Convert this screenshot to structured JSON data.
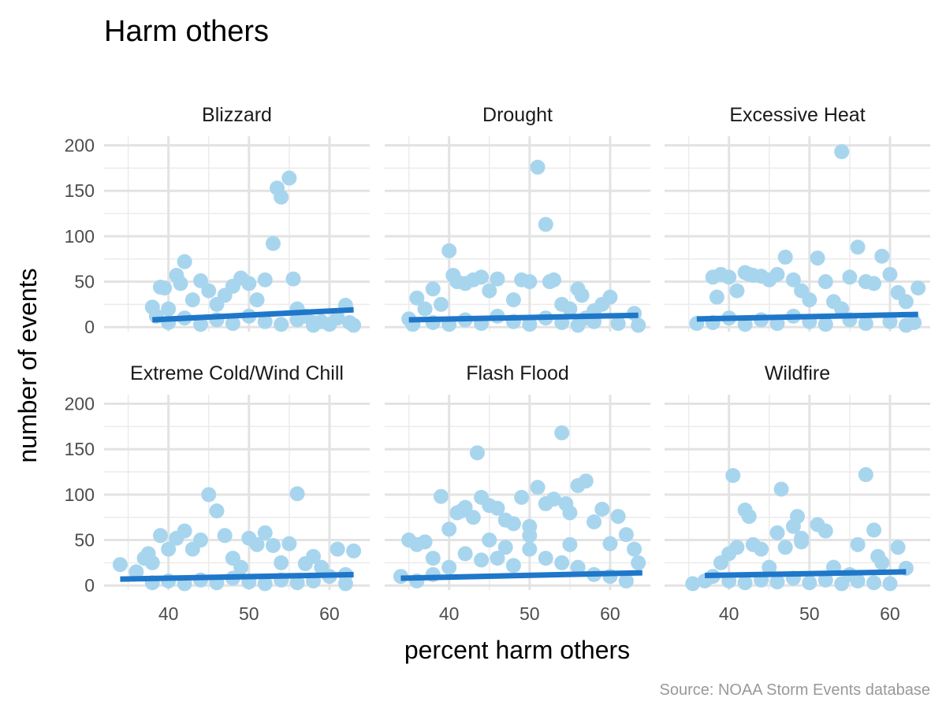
{
  "chart_data": {
    "type": "scatter",
    "title": "Harm others",
    "xlabel": "percent harm others",
    "ylabel": "number of events",
    "caption": "Source: NOAA Storm Events database",
    "xlim": [
      32,
      65
    ],
    "ylim": [
      -5,
      210
    ],
    "x_ticks": [
      40,
      50,
      60
    ],
    "y_ticks": [
      0,
      50,
      100,
      150,
      200
    ],
    "grid": true,
    "point_color": "#a8d5ee",
    "line_color": "#1f77c9",
    "panels": [
      {
        "name": "Blizzard",
        "trend": {
          "x": [
            38,
            63
          ],
          "y": [
            8,
            19
          ]
        },
        "points": [
          [
            38,
            22
          ],
          [
            38.5,
            12
          ],
          [
            39,
            44
          ],
          [
            39.5,
            43
          ],
          [
            40,
            20
          ],
          [
            41,
            57
          ],
          [
            41.5,
            48
          ],
          [
            42,
            72
          ],
          [
            43,
            30
          ],
          [
            44,
            51
          ],
          [
            45,
            40
          ],
          [
            46,
            25
          ],
          [
            47,
            35
          ],
          [
            48,
            45
          ],
          [
            49,
            54
          ],
          [
            50,
            48
          ],
          [
            51,
            30
          ],
          [
            52,
            52
          ],
          [
            53,
            92
          ],
          [
            53.5,
            153
          ],
          [
            54,
            143
          ],
          [
            55,
            164
          ],
          [
            55.5,
            53
          ],
          [
            56,
            20
          ],
          [
            57,
            12
          ],
          [
            58,
            5
          ],
          [
            60,
            3
          ],
          [
            61,
            10
          ],
          [
            62,
            24
          ],
          [
            62.5,
            5
          ],
          [
            63,
            2
          ],
          [
            40,
            5
          ],
          [
            42,
            10
          ],
          [
            44,
            3
          ],
          [
            46,
            8
          ],
          [
            48,
            4
          ],
          [
            50,
            12
          ],
          [
            52,
            6
          ],
          [
            54,
            3
          ],
          [
            56,
            8
          ],
          [
            58,
            2
          ],
          [
            59,
            6
          ]
        ]
      },
      {
        "name": "Drought",
        "trend": {
          "x": [
            35,
            63.5
          ],
          "y": [
            8,
            13
          ]
        },
        "points": [
          [
            35,
            9
          ],
          [
            35.5,
            3
          ],
          [
            36,
            32
          ],
          [
            37,
            20
          ],
          [
            38,
            42
          ],
          [
            39,
            25
          ],
          [
            40,
            84
          ],
          [
            40.5,
            57
          ],
          [
            41,
            50
          ],
          [
            42,
            48
          ],
          [
            43,
            52
          ],
          [
            44,
            55
          ],
          [
            45,
            40
          ],
          [
            46,
            53
          ],
          [
            48,
            30
          ],
          [
            49,
            52
          ],
          [
            50,
            50
          ],
          [
            51,
            176
          ],
          [
            52,
            113
          ],
          [
            52.5,
            50
          ],
          [
            53,
            52
          ],
          [
            54,
            25
          ],
          [
            55,
            20
          ],
          [
            56,
            42
          ],
          [
            56.5,
            35
          ],
          [
            57,
            10
          ],
          [
            58,
            18
          ],
          [
            59,
            25
          ],
          [
            60,
            33
          ],
          [
            63,
            15
          ],
          [
            63.5,
            2
          ],
          [
            38,
            5
          ],
          [
            40,
            3
          ],
          [
            42,
            8
          ],
          [
            44,
            4
          ],
          [
            46,
            12
          ],
          [
            48,
            6
          ],
          [
            50,
            3
          ],
          [
            52,
            10
          ],
          [
            54,
            5
          ],
          [
            56,
            2
          ],
          [
            58,
            6
          ],
          [
            61,
            4
          ]
        ]
      },
      {
        "name": "Excessive Heat",
        "trend": {
          "x": [
            36,
            63.5
          ],
          "y": [
            9,
            14
          ]
        },
        "points": [
          [
            36,
            4
          ],
          [
            38,
            55
          ],
          [
            38.5,
            33
          ],
          [
            39,
            58
          ],
          [
            40,
            55
          ],
          [
            41,
            40
          ],
          [
            42,
            60
          ],
          [
            42.5,
            58
          ],
          [
            43,
            57
          ],
          [
            44,
            56
          ],
          [
            45,
            52
          ],
          [
            46,
            58
          ],
          [
            47,
            77
          ],
          [
            48,
            52
          ],
          [
            49,
            40
          ],
          [
            50,
            30
          ],
          [
            51,
            76
          ],
          [
            52,
            50
          ],
          [
            53,
            28
          ],
          [
            54,
            20
          ],
          [
            54,
            193
          ],
          [
            55,
            55
          ],
          [
            56,
            88
          ],
          [
            57,
            50
          ],
          [
            58,
            48
          ],
          [
            59,
            78
          ],
          [
            60,
            58
          ],
          [
            61,
            38
          ],
          [
            62,
            28
          ],
          [
            63,
            5
          ],
          [
            63.5,
            43
          ],
          [
            38,
            5
          ],
          [
            40,
            10
          ],
          [
            42,
            3
          ],
          [
            44,
            8
          ],
          [
            46,
            4
          ],
          [
            48,
            12
          ],
          [
            50,
            6
          ],
          [
            52,
            3
          ],
          [
            55,
            8
          ],
          [
            57,
            4
          ],
          [
            60,
            6
          ],
          [
            62,
            2
          ]
        ]
      },
      {
        "name": "Extreme Cold/Wind Chill",
        "trend": {
          "x": [
            34,
            63
          ],
          "y": [
            7,
            12
          ]
        },
        "points": [
          [
            34,
            23
          ],
          [
            36,
            15
          ],
          [
            37,
            30
          ],
          [
            37.5,
            35
          ],
          [
            38,
            25
          ],
          [
            39,
            55
          ],
          [
            40,
            40
          ],
          [
            41,
            52
          ],
          [
            42,
            60
          ],
          [
            43,
            40
          ],
          [
            44,
            50
          ],
          [
            45,
            100
          ],
          [
            46,
            82
          ],
          [
            47,
            55
          ],
          [
            48,
            30
          ],
          [
            49,
            20
          ],
          [
            50,
            52
          ],
          [
            51,
            45
          ],
          [
            52,
            58
          ],
          [
            53,
            44
          ],
          [
            54,
            25
          ],
          [
            55,
            46
          ],
          [
            56,
            101
          ],
          [
            57,
            24
          ],
          [
            58,
            32
          ],
          [
            59,
            20
          ],
          [
            60,
            10
          ],
          [
            61,
            40
          ],
          [
            62,
            12
          ],
          [
            63,
            38
          ],
          [
            38,
            3
          ],
          [
            40,
            5
          ],
          [
            42,
            2
          ],
          [
            44,
            6
          ],
          [
            46,
            3
          ],
          [
            48,
            8
          ],
          [
            50,
            4
          ],
          [
            52,
            2
          ],
          [
            54,
            6
          ],
          [
            56,
            3
          ],
          [
            58,
            5
          ],
          [
            62,
            2
          ]
        ]
      },
      {
        "name": "Flash Flood",
        "trend": {
          "x": [
            34,
            64
          ],
          "y": [
            8,
            14
          ]
        },
        "points": [
          [
            34,
            10
          ],
          [
            35,
            50
          ],
          [
            36,
            45
          ],
          [
            37,
            48
          ],
          [
            38,
            30
          ],
          [
            39,
            98
          ],
          [
            40,
            62
          ],
          [
            41,
            80
          ],
          [
            41.5,
            82
          ],
          [
            42,
            86
          ],
          [
            43,
            75
          ],
          [
            43.5,
            146
          ],
          [
            44,
            97
          ],
          [
            45,
            88
          ],
          [
            46,
            85
          ],
          [
            47,
            72
          ],
          [
            48,
            68
          ],
          [
            49,
            97
          ],
          [
            50,
            65
          ],
          [
            51,
            108
          ],
          [
            52,
            90
          ],
          [
            53,
            95
          ],
          [
            54,
            168
          ],
          [
            54.5,
            90
          ],
          [
            55,
            80
          ],
          [
            56,
            110
          ],
          [
            57,
            115
          ],
          [
            58,
            70
          ],
          [
            59,
            84
          ],
          [
            60,
            46
          ],
          [
            61,
            76
          ],
          [
            62,
            56
          ],
          [
            63,
            40
          ],
          [
            63.5,
            25
          ],
          [
            36,
            5
          ],
          [
            38,
            12
          ],
          [
            40,
            20
          ],
          [
            42,
            35
          ],
          [
            44,
            28
          ],
          [
            46,
            30
          ],
          [
            48,
            22
          ],
          [
            50,
            40
          ],
          [
            52,
            30
          ],
          [
            54,
            25
          ],
          [
            56,
            20
          ],
          [
            58,
            12
          ],
          [
            60,
            10
          ],
          [
            62,
            5
          ],
          [
            45,
            50
          ],
          [
            50,
            55
          ],
          [
            55,
            45
          ],
          [
            47,
            42
          ]
        ]
      },
      {
        "name": "Wildfire",
        "trend": {
          "x": [
            37,
            62
          ],
          "y": [
            11,
            15
          ]
        },
        "points": [
          [
            35.5,
            2
          ],
          [
            37,
            5
          ],
          [
            38,
            10
          ],
          [
            39,
            25
          ],
          [
            40,
            35
          ],
          [
            40.5,
            121
          ],
          [
            41,
            42
          ],
          [
            42,
            83
          ],
          [
            42.5,
            76
          ],
          [
            43,
            45
          ],
          [
            44,
            40
          ],
          [
            45,
            20
          ],
          [
            46,
            58
          ],
          [
            46.5,
            106
          ],
          [
            47,
            42
          ],
          [
            48,
            65
          ],
          [
            48.5,
            76
          ],
          [
            49,
            52
          ],
          [
            49,
            48
          ],
          [
            51,
            67
          ],
          [
            52,
            60
          ],
          [
            53,
            20
          ],
          [
            55,
            12
          ],
          [
            56,
            45
          ],
          [
            57,
            122
          ],
          [
            58,
            61
          ],
          [
            58.5,
            32
          ],
          [
            59,
            25
          ],
          [
            61,
            42
          ],
          [
            62,
            19
          ],
          [
            40,
            5
          ],
          [
            42,
            3
          ],
          [
            44,
            6
          ],
          [
            46,
            4
          ],
          [
            48,
            8
          ],
          [
            50,
            3
          ],
          [
            52,
            6
          ],
          [
            54,
            2
          ],
          [
            56,
            5
          ],
          [
            58,
            3
          ],
          [
            60,
            2
          ]
        ]
      }
    ]
  }
}
